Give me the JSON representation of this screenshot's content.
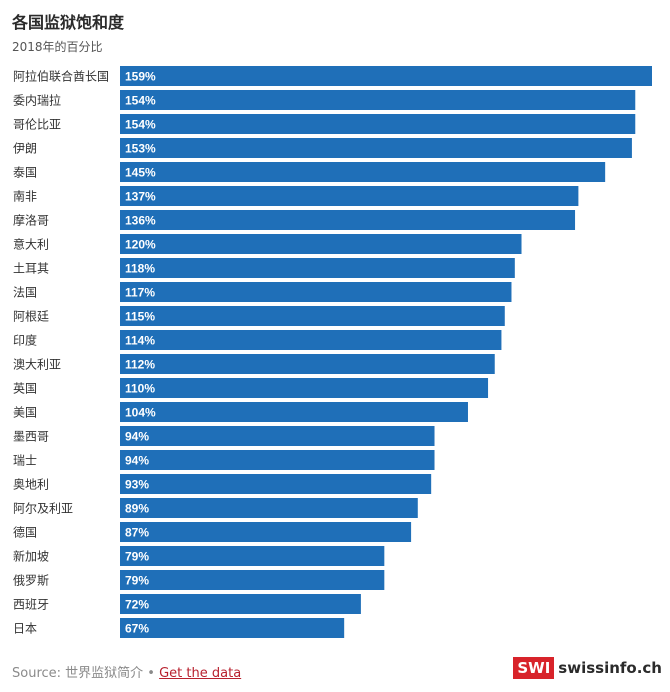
{
  "title": "各国监狱饱和度",
  "subtitle": "2018年的百分比",
  "footer": {
    "source_prefix": "Source: 世界监狱简介",
    "separator": " • ",
    "link_label": "Get the data"
  },
  "logo": {
    "box": "SWI",
    "text": "swissinfo.ch"
  },
  "colors": {
    "bar": "#1f6fb8",
    "bar_label": "#ffffff",
    "category_label": "#333333"
  },
  "chart_data": {
    "type": "bar",
    "orientation": "horizontal",
    "title": "各国监狱饱和度",
    "subtitle": "2018年的百分比",
    "categories": [
      "阿拉伯联合酋长国",
      "委内瑞拉",
      "哥伦比亚",
      "伊朗",
      "泰国",
      "南非",
      "摩洛哥",
      "意大利",
      "土耳其",
      "法国",
      "阿根廷",
      "印度",
      "澳大利亚",
      "英国",
      "美国",
      "墨西哥",
      "瑞士",
      "奥地利",
      "阿尔及利亚",
      "德国",
      "新加坡",
      "俄罗斯",
      "西班牙",
      "日本"
    ],
    "values": [
      159,
      154,
      154,
      153,
      145,
      137,
      136,
      120,
      118,
      117,
      115,
      114,
      112,
      110,
      104,
      94,
      94,
      93,
      89,
      87,
      79,
      79,
      72,
      67
    ],
    "value_labels": [
      "159%",
      "154%",
      "154%",
      "153%",
      "145%",
      "137%",
      "136%",
      "120%",
      "118%",
      "117%",
      "115%",
      "114%",
      "112%",
      "110%",
      "104%",
      "94%",
      "94%",
      "93%",
      "89%",
      "87%",
      "79%",
      "79%",
      "72%",
      "67%"
    ],
    "xlim": [
      0,
      159
    ],
    "grid": false,
    "legend": "none"
  }
}
